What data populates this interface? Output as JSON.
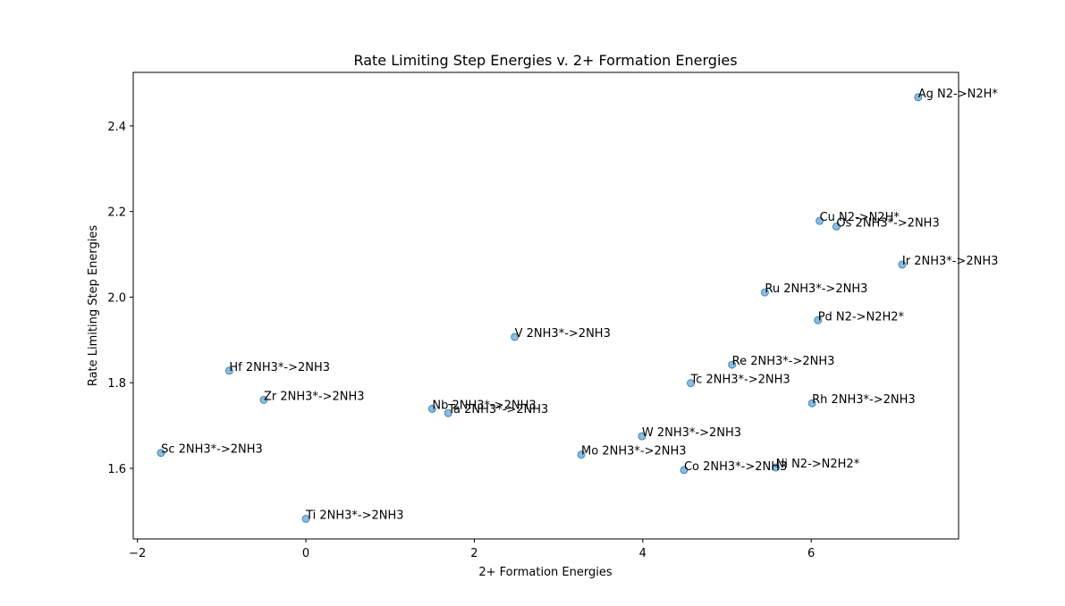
{
  "chart_data": {
    "type": "scatter",
    "title": "Rate Limiting Step Energies v. 2+ Formation Energies",
    "xlabel": "2+ Formation Energies",
    "ylabel": "Rate Limiting Step Energies",
    "xlim": [
      -2.05,
      7.75
    ],
    "ylim": [
      1.435,
      2.525
    ],
    "xticks": [
      -2,
      0,
      2,
      4,
      6
    ],
    "yticks": [
      1.6,
      1.8,
      2.0,
      2.2,
      2.4
    ],
    "xtick_labels": [
      "−2",
      "0",
      "2",
      "4",
      "6"
    ],
    "ytick_labels": [
      "1.6",
      "1.8",
      "2.0",
      "2.2",
      "2.4"
    ],
    "grid": false,
    "color": "#1f77b4",
    "points": [
      {
        "label": "Ag N2->N2H*",
        "x": 7.27,
        "y": 2.467
      },
      {
        "label": "Cu N2->N2H*",
        "x": 6.1,
        "y": 2.178
      },
      {
        "label": "Os 2NH3*->2NH3",
        "x": 6.3,
        "y": 2.165
      },
      {
        "label": "Ir 2NH3*->2NH3",
        "x": 7.08,
        "y": 2.076
      },
      {
        "label": "Ru 2NH3*->2NH3",
        "x": 5.45,
        "y": 2.011
      },
      {
        "label": "Pd N2->N2H2*",
        "x": 6.08,
        "y": 1.946
      },
      {
        "label": "V 2NH3*->2NH3",
        "x": 2.48,
        "y": 1.907
      },
      {
        "label": "Re 2NH3*->2NH3",
        "x": 5.06,
        "y": 1.842
      },
      {
        "label": "Hf 2NH3*->2NH3",
        "x": -0.91,
        "y": 1.828
      },
      {
        "label": "Tc 2NH3*->2NH3",
        "x": 4.57,
        "y": 1.799
      },
      {
        "label": "Zr 2NH3*->2NH3",
        "x": -0.5,
        "y": 1.76
      },
      {
        "label": "Rh 2NH3*->2NH3",
        "x": 6.01,
        "y": 1.752
      },
      {
        "label": "Nb 2NH3*->2NH3",
        "x": 1.5,
        "y": 1.739
      },
      {
        "label": "Ta 2NH3*->2NH3",
        "x": 1.69,
        "y": 1.729
      },
      {
        "label": "W 2NH3*->2NH3",
        "x": 3.99,
        "y": 1.675
      },
      {
        "label": "Sc 2NH3*->2NH3",
        "x": -1.72,
        "y": 1.636
      },
      {
        "label": "Mo 2NH3*->2NH3",
        "x": 3.27,
        "y": 1.632
      },
      {
        "label": "Ni N2->N2H2*",
        "x": 5.58,
        "y": 1.602
      },
      {
        "label": "Co 2NH3*->2NH3",
        "x": 4.49,
        "y": 1.596
      },
      {
        "label": "Ti 2NH3*->2NH3",
        "x": 0.0,
        "y": 1.482
      }
    ]
  }
}
